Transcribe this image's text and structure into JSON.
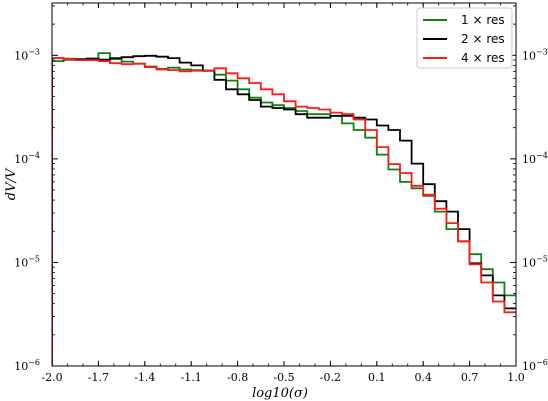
{
  "chart_data": {
    "type": "line",
    "step": true,
    "xlabel": "log10(σ)",
    "ylabel": "dV/V",
    "xlim": [
      -2.0,
      1.0
    ],
    "ylim": [
      1e-06,
      0.0032
    ],
    "yscale": "log",
    "grid": false,
    "legend_position": "top-right",
    "x_ticks": [
      -2.0,
      -1.7,
      -1.4,
      -1.1,
      -0.8,
      -0.5,
      -0.2,
      0.1,
      0.4,
      0.7,
      1.0
    ],
    "x_tick_labels": [
      "-2.0",
      "-1.7",
      "-1.4",
      "-1.1",
      "-0.8",
      "-0.5",
      "-0.2",
      "0.1",
      "0.4",
      "0.7",
      "1.0"
    ],
    "y_ticks": [
      1e-06,
      1e-05,
      0.0001,
      0.001
    ],
    "y_tick_labels": [
      {
        "base": "10",
        "exp": "−6"
      },
      {
        "base": "10",
        "exp": "−5"
      },
      {
        "base": "10",
        "exp": "−4"
      },
      {
        "base": "10",
        "exp": "−3"
      }
    ],
    "bin_edges": [
      -2.0,
      -1.925,
      -1.85,
      -1.775,
      -1.7,
      -1.625,
      -1.55,
      -1.475,
      -1.4,
      -1.325,
      -1.25,
      -1.175,
      -1.1,
      -1.025,
      -0.95,
      -0.875,
      -0.8,
      -0.725,
      -0.65,
      -0.575,
      -0.5,
      -0.425,
      -0.35,
      -0.275,
      -0.2,
      -0.125,
      -0.05,
      0.025,
      0.1,
      0.175,
      0.25,
      0.325,
      0.4,
      0.475,
      0.55,
      0.625,
      0.7,
      0.775,
      0.85,
      0.925,
      1.0
    ],
    "series": [
      {
        "name": "1 × res",
        "color": "#118011",
        "values": [
          0.00088,
          0.00093,
          0.00091,
          0.00093,
          0.00105,
          0.00092,
          0.00087,
          0.00083,
          0.00078,
          0.00074,
          0.00076,
          0.00073,
          0.00072,
          0.00071,
          0.00065,
          0.00057,
          0.00047,
          0.00039,
          0.00035,
          0.00033,
          0.00031,
          0.00029,
          0.00027,
          0.00027,
          0.00026,
          0.00022,
          0.00019,
          0.00016,
          0.00011,
          7.9e-05,
          6e-05,
          5.2e-05,
          4.4e-05,
          3.1e-05,
          2.1e-05,
          1.6e-05,
          1.2e-05,
          8.6e-06,
          6.4e-06,
          4.8e-06
        ]
      },
      {
        "name": "2 × res",
        "color": "#000000",
        "values": [
          0.00094,
          0.00091,
          0.00092,
          0.00093,
          0.00091,
          0.00094,
          0.00096,
          0.00098,
          0.00099,
          0.00097,
          0.00094,
          0.00085,
          0.0008,
          0.00071,
          0.00058,
          0.00047,
          0.00042,
          0.00037,
          0.00032,
          0.00031,
          0.0003,
          0.00027,
          0.00025,
          0.00025,
          0.00026,
          0.00026,
          0.00025,
          0.00024,
          0.00021,
          0.00019,
          0.00015,
          9e-05,
          5.7e-05,
          3.9e-05,
          3.1e-05,
          2.1e-05,
          9.8e-06,
          7.5e-06,
          4.8e-06,
          3.6e-06
        ]
      },
      {
        "name": "4 × res",
        "color": "#ff1a1a",
        "values": [
          0.00094,
          0.00092,
          0.0009,
          0.0009,
          0.00088,
          0.00084,
          0.00082,
          0.00083,
          0.00077,
          0.00073,
          0.00072,
          0.0007,
          0.00071,
          0.00071,
          0.00075,
          0.00067,
          0.0006,
          0.00054,
          0.00047,
          0.00042,
          0.00036,
          0.00032,
          0.00031,
          0.0003,
          0.00028,
          0.00027,
          0.00024,
          0.00019,
          0.00013,
          8.9e-05,
          7.3e-05,
          5.5e-05,
          4.5e-05,
          3.3e-05,
          2.4e-05,
          1.6e-05,
          9.6e-06,
          6.4e-06,
          4.2e-06,
          3.3e-06
        ]
      }
    ]
  }
}
